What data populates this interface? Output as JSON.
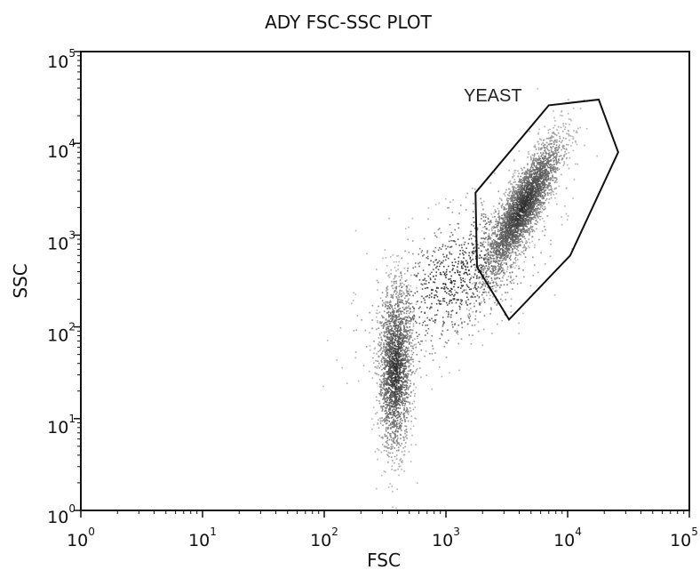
{
  "chart_data": {
    "type": "scatter",
    "title": "ADY FSC-SSC PLOT",
    "xlabel": "FSC",
    "ylabel": "SSC",
    "x_scale": "log",
    "y_scale": "log",
    "xlim": [
      1,
      100000
    ],
    "ylim": [
      1,
      100000
    ],
    "x_ticks": [
      {
        "base": "10",
        "exp": "0",
        "value": 1
      },
      {
        "base": "10",
        "exp": "1",
        "value": 10
      },
      {
        "base": "10",
        "exp": "2",
        "value": 100
      },
      {
        "base": "10",
        "exp": "3",
        "value": 1000
      },
      {
        "base": "10",
        "exp": "4",
        "value": 10000
      },
      {
        "base": "10",
        "exp": "5",
        "value": 100000
      }
    ],
    "y_ticks": [
      {
        "base": "10",
        "exp": "0",
        "value": 1
      },
      {
        "base": "10",
        "exp": "1",
        "value": 10
      },
      {
        "base": "10",
        "exp": "2",
        "value": 100
      },
      {
        "base": "10",
        "exp": "3",
        "value": 1000
      },
      {
        "base": "10",
        "exp": "4",
        "value": 10000
      },
      {
        "base": "10",
        "exp": "5",
        "value": 100000
      }
    ],
    "grid": false,
    "plot_style": "density pseudocolor (grayscale)",
    "populations": [
      {
        "center": [
          4200,
          2000
        ],
        "spread_log": [
          0.16,
          0.38
        ],
        "corr": 0.85,
        "density": "high"
      },
      {
        "center": [
          380,
          35
        ],
        "spread_log": [
          0.07,
          0.45
        ],
        "corr": 0.1,
        "density": "medium"
      },
      {
        "center": [
          1200,
          350
        ],
        "spread_log": [
          0.35,
          0.45
        ],
        "corr": 0.6,
        "density": "low"
      }
    ],
    "gates": [
      {
        "label": "YEAST",
        "color": "#111111",
        "vertices": [
          [
            1750,
            2900
          ],
          [
            7000,
            26000
          ],
          [
            18000,
            30000
          ],
          [
            26000,
            8000
          ],
          [
            10500,
            600
          ],
          [
            3300,
            120
          ],
          [
            1800,
            450
          ]
        ]
      }
    ]
  }
}
